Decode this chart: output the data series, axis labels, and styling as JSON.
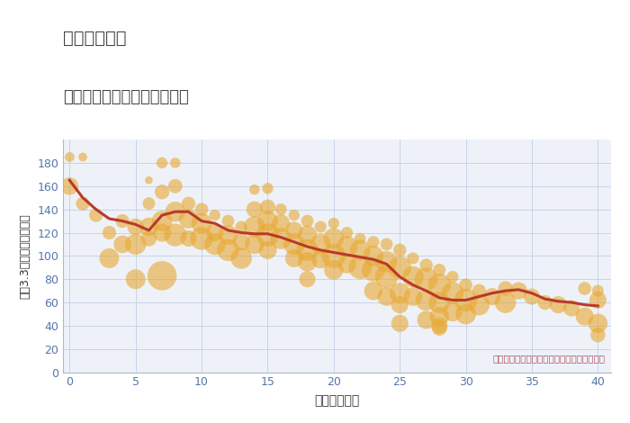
{
  "title_line1": "東京都鶴川駅",
  "title_line2": "築年数別中古マンション価格",
  "xlabel": "築年数（年）",
  "ylabel": "坪（3.3㎡）単価（万円）",
  "note": "円の大きさは、取引のあった物件面積を示す",
  "bg_color": "#eef2f8",
  "scatter_color": "#e8a832",
  "scatter_alpha": 0.6,
  "line_color": "#b83a2a",
  "line_width": 2.2,
  "ylim": [
    0,
    200
  ],
  "xlim": [
    -0.5,
    41
  ],
  "yticks": [
    0,
    20,
    40,
    60,
    80,
    100,
    120,
    140,
    160,
    180
  ],
  "xticks": [
    0,
    5,
    10,
    15,
    20,
    25,
    30,
    35,
    40
  ],
  "trend_x": [
    0,
    1,
    2,
    3,
    4,
    5,
    6,
    7,
    8,
    9,
    10,
    11,
    12,
    13,
    14,
    15,
    16,
    17,
    18,
    19,
    20,
    21,
    22,
    23,
    24,
    25,
    26,
    27,
    28,
    29,
    30,
    31,
    32,
    33,
    34,
    35,
    36,
    37,
    38,
    39,
    40
  ],
  "trend_y": [
    165,
    150,
    140,
    132,
    130,
    127,
    122,
    135,
    138,
    138,
    130,
    128,
    122,
    120,
    119,
    119,
    116,
    112,
    108,
    105,
    103,
    101,
    99,
    97,
    93,
    82,
    75,
    70,
    64,
    62,
    62,
    65,
    68,
    70,
    71,
    68,
    63,
    61,
    60,
    58,
    57
  ],
  "scatter_x": [
    0,
    0,
    1,
    1,
    2,
    3,
    3,
    4,
    4,
    5,
    5,
    5,
    6,
    6,
    6,
    6,
    7,
    7,
    7,
    7,
    7,
    8,
    8,
    8,
    8,
    9,
    9,
    9,
    10,
    10,
    10,
    11,
    11,
    11,
    12,
    12,
    12,
    13,
    13,
    13,
    14,
    14,
    14,
    14,
    15,
    15,
    15,
    15,
    15,
    16,
    16,
    16,
    17,
    17,
    17,
    17,
    18,
    18,
    18,
    18,
    18,
    19,
    19,
    19,
    20,
    20,
    20,
    20,
    21,
    21,
    21,
    22,
    22,
    22,
    23,
    23,
    23,
    23,
    24,
    24,
    24,
    24,
    25,
    25,
    25,
    25,
    25,
    26,
    26,
    26,
    27,
    27,
    27,
    27,
    28,
    28,
    28,
    28,
    28,
    28,
    29,
    29,
    29,
    30,
    30,
    30,
    31,
    31,
    32,
    33,
    33,
    34,
    35,
    36,
    37,
    38,
    39,
    39,
    40,
    40,
    40,
    40
  ],
  "scatter_y": [
    185,
    160,
    185,
    145,
    135,
    120,
    98,
    130,
    110,
    125,
    110,
    80,
    165,
    145,
    125,
    115,
    180,
    155,
    130,
    120,
    83,
    180,
    160,
    138,
    118,
    145,
    132,
    115,
    140,
    128,
    115,
    135,
    120,
    110,
    130,
    118,
    105,
    125,
    112,
    98,
    157,
    140,
    125,
    110,
    158,
    142,
    130,
    118,
    105,
    140,
    128,
    115,
    135,
    122,
    110,
    98,
    130,
    118,
    105,
    95,
    80,
    125,
    110,
    97,
    128,
    115,
    100,
    88,
    120,
    108,
    93,
    115,
    105,
    90,
    112,
    100,
    88,
    70,
    110,
    95,
    82,
    65,
    105,
    90,
    68,
    58,
    42,
    98,
    82,
    65,
    92,
    80,
    62,
    45,
    88,
    75,
    60,
    48,
    40,
    38,
    82,
    68,
    52,
    75,
    62,
    50,
    70,
    58,
    65,
    72,
    60,
    70,
    65,
    60,
    58,
    55,
    72,
    48,
    70,
    62,
    42,
    32
  ],
  "scatter_size": [
    60,
    200,
    50,
    120,
    120,
    120,
    250,
    120,
    200,
    180,
    280,
    250,
    40,
    100,
    220,
    160,
    80,
    140,
    270,
    210,
    550,
    70,
    130,
    260,
    330,
    120,
    240,
    170,
    110,
    270,
    340,
    80,
    190,
    290,
    100,
    240,
    310,
    90,
    190,
    290,
    70,
    170,
    290,
    240,
    80,
    150,
    270,
    340,
    210,
    90,
    210,
    290,
    80,
    190,
    290,
    210,
    100,
    230,
    310,
    240,
    170,
    90,
    270,
    210,
    80,
    270,
    370,
    240,
    90,
    290,
    220,
    80,
    270,
    340,
    90,
    270,
    340,
    220,
    100,
    290,
    340,
    220,
    110,
    340,
    270,
    190,
    190,
    90,
    290,
    220,
    110,
    340,
    290,
    210,
    100,
    340,
    290,
    240,
    170,
    150,
    90,
    310,
    240,
    110,
    340,
    270,
    120,
    290,
    190,
    140,
    290,
    190,
    170,
    140,
    190,
    170,
    110,
    210,
    90,
    190,
    240,
    140
  ]
}
